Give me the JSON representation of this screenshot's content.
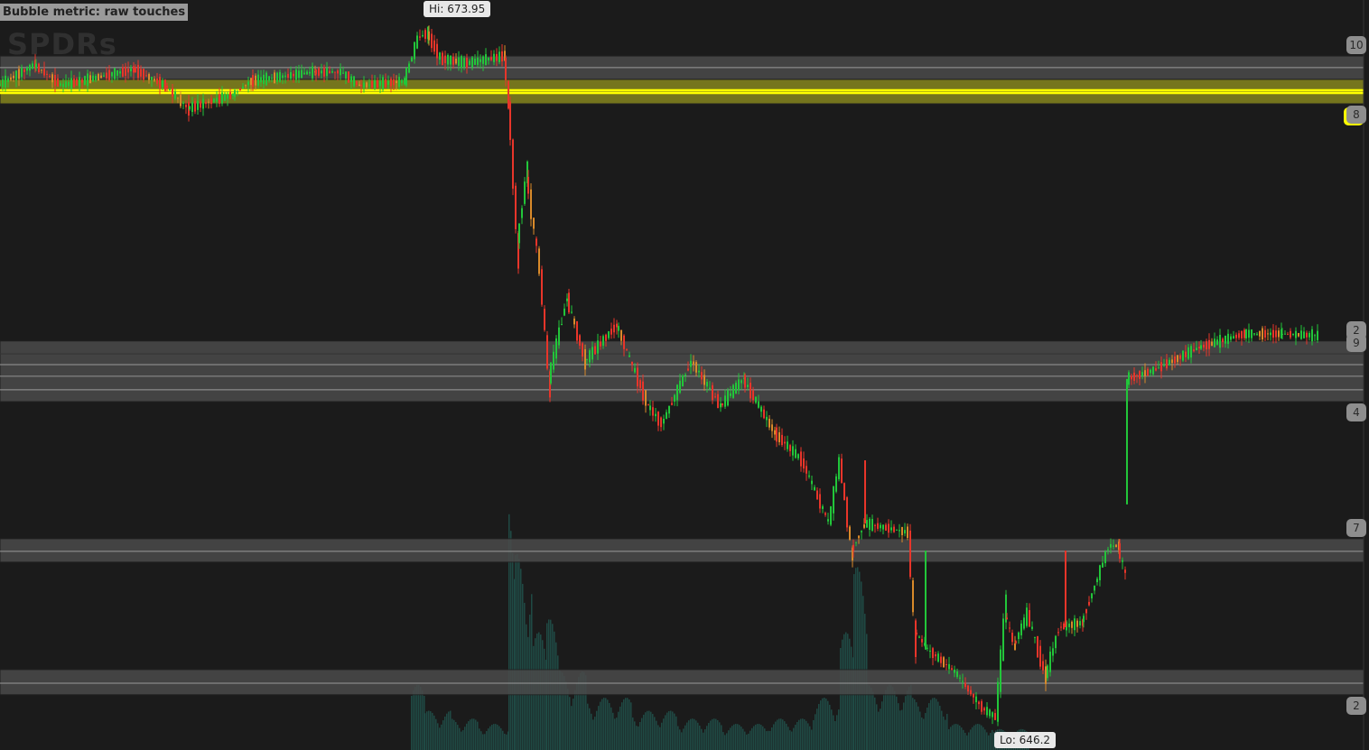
{
  "chart_data": {
    "type": "candlestick",
    "title": "Bubble metric: raw touches",
    "watermark": "SPDRs",
    "ylim": [
      644.88,
      675.3
    ],
    "xlim": [
      0,
      1516
    ],
    "grid": false,
    "hi_label": "Hi: 673.95",
    "lo_label": "Lo: 646.2",
    "hi": {
      "x": 475,
      "price": 673.95
    },
    "lo": {
      "x": 1105,
      "price": 646.2
    },
    "colors": {
      "up": "#22c63a",
      "down": "#e8352a",
      "neutral": "#d98a2a",
      "zone": "#4a4a4a",
      "zone_line": "#9a9a9a",
      "highlight": "#ffff00",
      "volume": "#1f4a44",
      "background": "#1b1b1b"
    },
    "price_path": [
      [
        0,
        671.83
      ],
      [
        40,
        672.67
      ],
      [
        70,
        671.83
      ],
      [
        150,
        672.49
      ],
      [
        185,
        671.83
      ],
      [
        210,
        670.91
      ],
      [
        260,
        671.46
      ],
      [
        280,
        672.01
      ],
      [
        350,
        672.38
      ],
      [
        380,
        672.38
      ],
      [
        400,
        671.83
      ],
      [
        450,
        672.01
      ],
      [
        465,
        673.77
      ],
      [
        475,
        673.95
      ],
      [
        490,
        672.92
      ],
      [
        520,
        672.74
      ],
      [
        560,
        673.03
      ],
      [
        565,
        671.28
      ],
      [
        575,
        665.42
      ],
      [
        585,
        668.17
      ],
      [
        600,
        664.32
      ],
      [
        610,
        659.93
      ],
      [
        630,
        663.22
      ],
      [
        650,
        660.66
      ],
      [
        685,
        662.12
      ],
      [
        720,
        658.83
      ],
      [
        735,
        658.1
      ],
      [
        768,
        660.66
      ],
      [
        800,
        658.83
      ],
      [
        825,
        659.93
      ],
      [
        860,
        657.73
      ],
      [
        890,
        656.63
      ],
      [
        920,
        654.07
      ],
      [
        932,
        656.63
      ],
      [
        945,
        652.97
      ],
      [
        960,
        654.07
      ],
      [
        1008,
        653.7
      ],
      [
        1015,
        649.68
      ],
      [
        1030,
        648.95
      ],
      [
        1060,
        648.03
      ],
      [
        1090,
        646.57
      ],
      [
        1105,
        646.2
      ],
      [
        1115,
        650.41
      ],
      [
        1125,
        649.13
      ],
      [
        1140,
        650.41
      ],
      [
        1160,
        647.85
      ],
      [
        1175,
        649.86
      ],
      [
        1200,
        650.04
      ],
      [
        1230,
        653.16
      ],
      [
        1240,
        653.16
      ],
      [
        1248,
        652.06
      ],
      null,
      [
        1250,
        659.93
      ],
      [
        1280,
        660.29
      ],
      [
        1330,
        661.21
      ],
      [
        1380,
        661.76
      ],
      [
        1420,
        661.76
      ],
      [
        1460,
        661.69
      ]
    ],
    "spikes": [
      {
        "x": 958,
        "from": 654.07,
        "to": 656.63,
        "dir": "down"
      },
      {
        "x": 1025,
        "from": 648.95,
        "to": 652.97,
        "dir": "up"
      },
      {
        "x": 1180,
        "from": 649.86,
        "to": 652.97,
        "dir": "down"
      },
      {
        "x": 1248,
        "from": 659.93,
        "to": 654.84,
        "dir": "up"
      }
    ],
    "volume": [
      [
        455,
        0.25
      ],
      [
        470,
        0.15
      ],
      [
        500,
        0.12
      ],
      [
        530,
        0.1
      ],
      [
        563,
        0.95
      ],
      [
        570,
        0.75
      ],
      [
        590,
        0.45
      ],
      [
        605,
        0.5
      ],
      [
        620,
        0.3
      ],
      [
        650,
        0.2
      ],
      [
        700,
        0.15
      ],
      [
        750,
        0.12
      ],
      [
        800,
        0.1
      ],
      [
        850,
        0.12
      ],
      [
        900,
        0.2
      ],
      [
        930,
        0.45
      ],
      [
        945,
        0.7
      ],
      [
        960,
        0.25
      ],
      [
        1010,
        0.2
      ],
      [
        1050,
        0.1
      ],
      [
        1100,
        0.08
      ]
    ],
    "zones": [
      {
        "band": [
          672.08,
          673.03
        ],
        "lines": [
          672.56
        ],
        "label": "10",
        "highlight": false
      },
      {
        "band": [
          671.09,
          672.08
        ],
        "lines": [
          671.64,
          671.53
        ],
        "label": "8",
        "highlight": true
      },
      {
        "band": [
          660.95,
          661.47
        ],
        "lines": [
          660.95
        ],
        "label": "2",
        "highlight": false
      },
      {
        "band": [
          660.04,
          660.95
        ],
        "lines": [
          660.51
        ],
        "label": "9",
        "highlight": false
      },
      {
        "band": [
          659.01,
          660.04
        ],
        "lines": [
          660.04,
          659.49
        ],
        "label": "4",
        "highlight": false
      },
      {
        "band": [
          652.5,
          653.45
        ],
        "lines": [
          652.94
        ],
        "label": "7",
        "highlight": false
      },
      {
        "band": [
          647.12,
          648.14
        ],
        "lines": [
          647.59
        ],
        "label": "2",
        "highlight": false
      }
    ]
  }
}
